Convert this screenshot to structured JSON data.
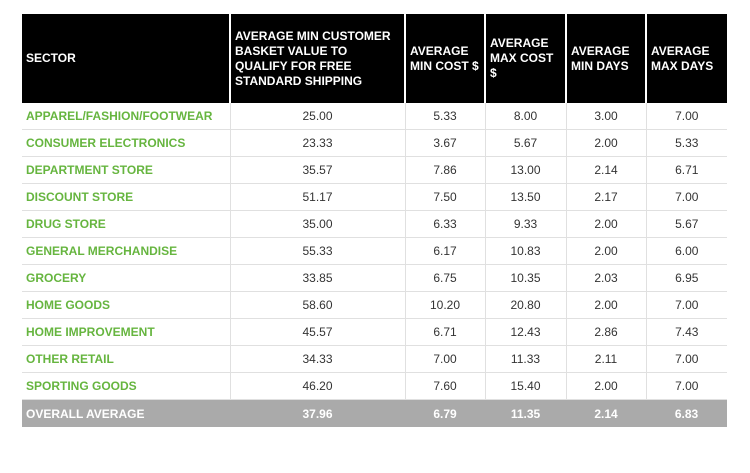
{
  "table": {
    "header": [
      "SECTOR",
      "AVERAGE MIN CUSTOMER BASKET VALUE TO QUALIFY FOR FREE STANDARD SHIPPING",
      "AVERAGE MIN COST $",
      "AVERAGE MAX COST $",
      "AVERAGE MIN DAYS",
      "AVERAGE MAX DAYS"
    ],
    "rows": [
      [
        "APPAREL/FASHION/FOOTWEAR",
        "25.00",
        "5.33",
        "8.00",
        "3.00",
        "7.00"
      ],
      [
        "CONSUMER ELECTRONICS",
        "23.33",
        "3.67",
        "5.67",
        "2.00",
        "5.33"
      ],
      [
        "DEPARTMENT STORE",
        "35.57",
        "7.86",
        "13.00",
        "2.14",
        "6.71"
      ],
      [
        "DISCOUNT STORE",
        "51.17",
        "7.50",
        "13.50",
        "2.17",
        "7.00"
      ],
      [
        "DRUG STORE",
        "35.00",
        "6.33",
        "9.33",
        "2.00",
        "5.67"
      ],
      [
        "GENERAL MERCHANDISE",
        "55.33",
        "6.17",
        "10.83",
        "2.00",
        "6.00"
      ],
      [
        "GROCERY",
        "33.85",
        "6.75",
        "10.35",
        "2.03",
        "6.95"
      ],
      [
        "HOME GOODS",
        "58.60",
        "10.20",
        "20.80",
        "2.00",
        "7.00"
      ],
      [
        "HOME IMPROVEMENT",
        "45.57",
        "6.71",
        "12.43",
        "2.86",
        "7.43"
      ],
      [
        "OTHER RETAIL",
        "34.33",
        "7.00",
        "11.33",
        "2.11",
        "7.00"
      ],
      [
        "SPORTING GOODS",
        "46.20",
        "7.60",
        "15.40",
        "2.00",
        "7.00"
      ]
    ],
    "footer": [
      "OVERALL AVERAGE",
      "37.96",
      "6.79",
      "11.35",
      "2.14",
      "6.83"
    ]
  }
}
